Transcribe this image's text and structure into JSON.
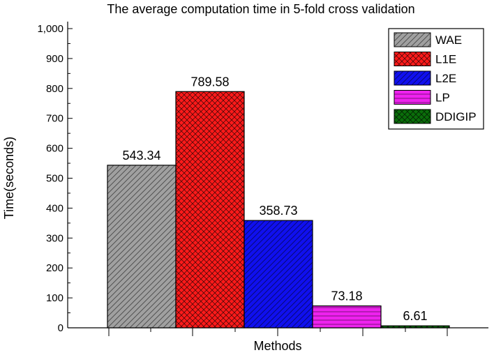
{
  "chart_data": {
    "type": "bar",
    "title": "The average computation time in 5-fold cross validation",
    "xlabel": "Methods",
    "ylabel": "Time(seconds)",
    "ylim": [
      0,
      1000
    ],
    "yticks": [
      0,
      100,
      200,
      300,
      400,
      500,
      600,
      700,
      800,
      900,
      1000
    ],
    "ytick_labels": [
      "0",
      "100",
      "200",
      "300",
      "400",
      "500",
      "600",
      "700",
      "800",
      "900",
      "1,000"
    ],
    "grid": false,
    "legend_position": "top-right",
    "categories": [
      "WAE",
      "L1E",
      "L2E",
      "LP",
      "DDIGIP"
    ],
    "values": [
      543.34,
      789.58,
      358.73,
      73.18,
      6.61
    ],
    "data_labels": [
      "543.34",
      "789.58",
      "358.73",
      "73.18",
      "6.61"
    ],
    "colors": [
      "#a0a0a0",
      "#ff1a1a",
      "#1010ee",
      "#ee22ee",
      "#0a6e0a"
    ],
    "patterns": [
      "diagonal-hatch",
      "crosshatch",
      "diagonal-hatch",
      "horizontal-lines",
      "crosshatch"
    ]
  }
}
